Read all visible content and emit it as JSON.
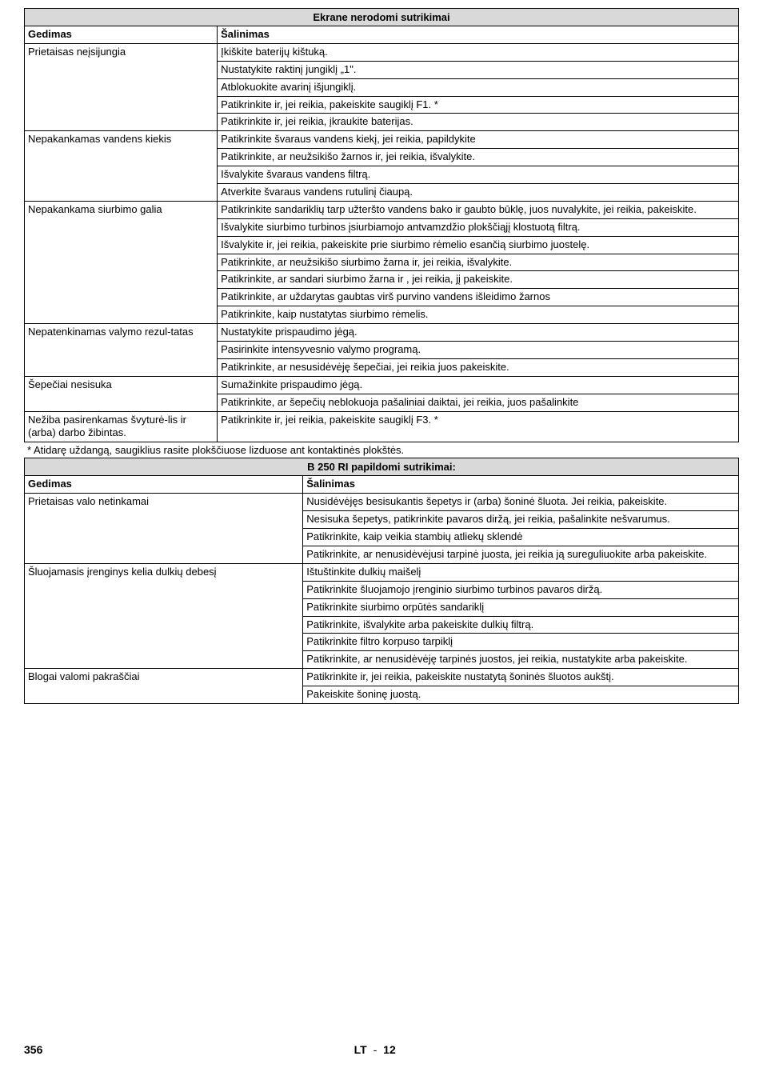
{
  "section1": {
    "title": "Ekrane nerodomi sutrikimai",
    "header": {
      "col1": "Gedimas",
      "col2": "Šalinimas"
    },
    "rows": [
      {
        "fault": "Prietaisas neįsijungia",
        "fixes": [
          "Įkiškite baterijų kištuką.",
          "Nustatykite raktinį jungiklį „1\".",
          "Atblokuokite avarinį išjungiklį.",
          "Patikrinkite ir, jei reikia, pakeiskite saugiklį F1. *",
          "Patikrinkite ir, jei reikia, įkraukite baterijas."
        ]
      },
      {
        "fault": "Nepakankamas vandens kiekis",
        "fixes": [
          "Patikrinkite švaraus vandens kiekį, jei reikia, papildykite",
          "Patikrinkite, ar neužsikišo žarnos ir, jei reikia, išvalykite.",
          "Išvalykite švaraus vandens filtrą.",
          "Atverkite švaraus vandens rutulinį čiaupą."
        ]
      },
      {
        "fault": "Nepakankama siurbimo galia",
        "fixes": [
          "Patikrinkite sandariklių tarp užteršto vandens bako ir gaubto būklę, juos nuvalykite, jei reikia, pakeiskite.",
          "Išvalykite siurbimo turbinos įsiurbiamojo antvamzdžio plokščiąjį klostuotą filtrą.",
          "Išvalykite ir, jei reikia, pakeiskite prie siurbimo rėmelio esančią siurbimo juostelę.",
          "Patikrinkite, ar neužsikišo siurbimo žarna ir, jei reikia, išvalykite.",
          "Patikrinkite, ar sandari siurbimo žarna ir , jei reikia, jį pakeiskite.",
          "Patikrinkite, ar uždarytas gaubtas virš purvino vandens išleidimo žarnos",
          "Patikrinkite, kaip nustatytas siurbimo rėmelis."
        ]
      },
      {
        "fault": "Nepatenkinamas valymo rezul-tatas",
        "fixes": [
          "Nustatykite prispaudimo jėgą.",
          "Pasirinkite intensyvesnio valymo programą.",
          "Patikrinkite, ar nesusidėvėję šepečiai, jei reikia juos pakeiskite."
        ]
      },
      {
        "fault": "Šepečiai nesisuka",
        "fixes": [
          "Sumažinkite prispaudimo jėgą.",
          "Patikrinkite, ar šepečių neblokuoja pašaliniai daiktai, jei reikia, juos pašalinkite"
        ]
      },
      {
        "fault": "Nežiba pasirenkamas švyturė-lis ir (arba) darbo žibintas.",
        "fixes": [
          "Patikrinkite ir, jei reikia, pakeiskite saugiklį F3. *"
        ]
      }
    ],
    "footnote": "* Atidarę uždangą, saugiklius rasite plokščiuose lizduose ant kontaktinės plokštės."
  },
  "section2": {
    "title": "B 250 RI papildomi sutrikimai:",
    "header": {
      "col1": "Gedimas",
      "col2": "Šalinimas"
    },
    "rows": [
      {
        "fault": "Prietaisas valo netinkamai",
        "fixes": [
          "Nusidėvėjęs besisukantis šepetys ir (arba) šoninė šluota. Jei reikia, pakeiskite.",
          "Nesisuka šepetys, patikrinkite pavaros diržą, jei reikia, pašalinkite nešvarumus.",
          "Patikrinkite, kaip veikia stambių atliekų sklendė",
          "Patikrinkite, ar nenusidėvėjusi tarpinė juosta, jei reikia ją sureguliuokite arba pakeiskite."
        ]
      },
      {
        "fault": "Šluojamasis įrenginys kelia dulkių debesį",
        "fixes": [
          "Ištuštinkite dulkių maišelį",
          "Patikrinkite šluojamojo įrenginio siurbimo turbinos pavaros diržą.",
          "Patikrinkite siurbimo orpūtės sandariklį",
          "Patikrinkite, išvalykite arba pakeiskite dulkių filtrą.",
          "Patikrinkite filtro korpuso tarpiklį",
          "Patikrinkite, ar nenusidėvėję tarpinės juostos, jei reikia, nustatykite arba pakeiskite."
        ]
      },
      {
        "fault": "Blogai valomi pakraščiai",
        "fixes": [
          "Patikrinkite ir, jei reikia, pakeiskite nustatytą šoninės šluotos aukštį.",
          "Pakeiskite šoninę juostą."
        ]
      }
    ]
  },
  "footer": {
    "page_left": "356",
    "lang": "LT",
    "sep": "-",
    "page_right": "12"
  }
}
